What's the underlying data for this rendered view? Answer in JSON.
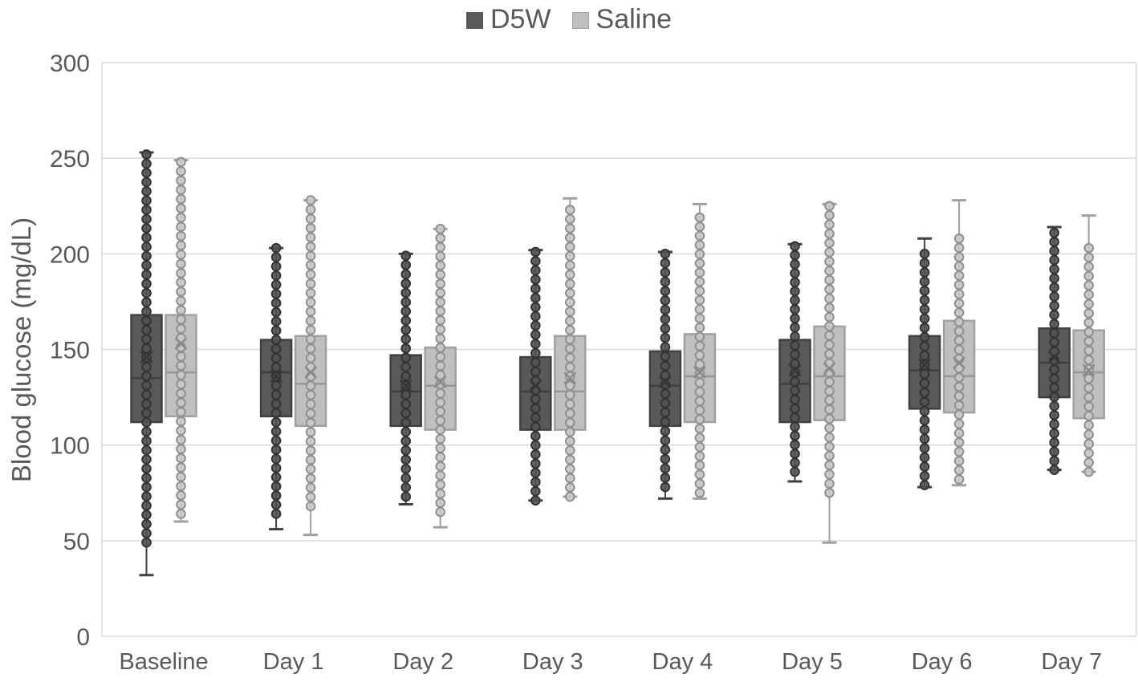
{
  "figure": {
    "background": "#ffffff",
    "text_color": "#595959",
    "gridline_color": "#d9d9d9"
  },
  "chart_data": {
    "type": "boxplot",
    "title": "",
    "xlabel": "",
    "ylabel": "Blood glucose (mg/dL)",
    "ylim": [
      0,
      300
    ],
    "yticks": [
      0,
      50,
      100,
      150,
      200,
      250,
      300
    ],
    "ytick_labels": [
      "0",
      "50",
      "100",
      "150",
      "200",
      "250",
      "300"
    ],
    "categories": [
      "Baseline",
      "Day 1",
      "Day 2",
      "Day 3",
      "Day 4",
      "Day 5",
      "Day 6",
      "Day 7"
    ],
    "legend": [
      "D5W",
      "Saline"
    ],
    "legend_position": "top-center",
    "grid": true,
    "dot_value_step": 4.8,
    "series": [
      {
        "name": "D5W",
        "box_fill": "#595959",
        "box_stroke": "#404040",
        "median_color": "#404040",
        "whisker_color": "#404040",
        "mean_color": "#363636",
        "dot_fill": "#515151",
        "dot_stroke": "#333333",
        "boxes": [
          {
            "category": "Baseline",
            "whisker_low": 32,
            "q1": 112,
            "median": 135,
            "mean": 146,
            "q3": 168,
            "whisker_high": 253,
            "dots_min": 49,
            "dots_max": 252
          },
          {
            "category": "Day 1",
            "whisker_low": 56,
            "q1": 115,
            "median": 138,
            "mean": 136,
            "q3": 155,
            "whisker_high": 203,
            "dots_min": 64,
            "dots_max": 203
          },
          {
            "category": "Day 2",
            "whisker_low": 69,
            "q1": 110,
            "median": 128,
            "mean": 131,
            "q3": 147,
            "whisker_high": 200,
            "dots_min": 73,
            "dots_max": 199
          },
          {
            "category": "Day 3",
            "whisker_low": 71,
            "q1": 108,
            "median": 128,
            "mean": 131,
            "q3": 146,
            "whisker_high": 202,
            "dots_min": 71,
            "dots_max": 201
          },
          {
            "category": "Day 4",
            "whisker_low": 72,
            "q1": 110,
            "median": 131,
            "mean": 133,
            "q3": 149,
            "whisker_high": 201,
            "dots_min": 78,
            "dots_max": 200
          },
          {
            "category": "Day 5",
            "whisker_low": 81,
            "q1": 112,
            "median": 132,
            "mean": 139,
            "q3": 155,
            "whisker_high": 205,
            "dots_min": 86,
            "dots_max": 204
          },
          {
            "category": "Day 6",
            "whisker_low": 78,
            "q1": 119,
            "median": 139,
            "mean": 142,
            "q3": 157,
            "whisker_high": 208,
            "dots_min": 79,
            "dots_max": 200
          },
          {
            "category": "Day 7",
            "whisker_low": 87,
            "q1": 125,
            "median": 143,
            "mean": 146,
            "q3": 161,
            "whisker_high": 214,
            "dots_min": 87,
            "dots_max": 211
          }
        ]
      },
      {
        "name": "Saline",
        "box_fill": "#bfbfbf",
        "box_stroke": "#a0a0a0",
        "median_color": "#969696",
        "whisker_color": "#a0a0a0",
        "mean_color": "#8a8a8a",
        "dot_fill": "#c8c8c8",
        "dot_stroke": "#8f8f8f",
        "boxes": [
          {
            "category": "Baseline",
            "whisker_low": 60,
            "q1": 115,
            "median": 138,
            "mean": 153,
            "q3": 168,
            "whisker_high": 249,
            "dots_min": 64,
            "dots_max": 248
          },
          {
            "category": "Day 1",
            "whisker_low": 53,
            "q1": 110,
            "median": 132,
            "mean": 138,
            "q3": 157,
            "whisker_high": 228,
            "dots_min": 68,
            "dots_max": 228
          },
          {
            "category": "Day 2",
            "whisker_low": 57,
            "q1": 108,
            "median": 131,
            "mean": 133,
            "q3": 151,
            "whisker_high": 213,
            "dots_min": 65,
            "dots_max": 213
          },
          {
            "category": "Day 3",
            "whisker_low": 73,
            "q1": 108,
            "median": 128,
            "mean": 135,
            "q3": 157,
            "whisker_high": 229,
            "dots_min": 73,
            "dots_max": 223
          },
          {
            "category": "Day 4",
            "whisker_low": 72,
            "q1": 112,
            "median": 136,
            "mean": 138,
            "q3": 158,
            "whisker_high": 226,
            "dots_min": 75,
            "dots_max": 219
          },
          {
            "category": "Day 5",
            "whisker_low": 49,
            "q1": 113,
            "median": 136,
            "mean": 140,
            "q3": 162,
            "whisker_high": 226,
            "dots_min": 75,
            "dots_max": 225
          },
          {
            "category": "Day 6",
            "whisker_low": 79,
            "q1": 117,
            "median": 136,
            "mean": 143,
            "q3": 165,
            "whisker_high": 228,
            "dots_min": 82,
            "dots_max": 208
          },
          {
            "category": "Day 7",
            "whisker_low": 86,
            "q1": 114,
            "median": 138,
            "mean": 139,
            "q3": 160,
            "whisker_high": 220,
            "dots_min": 86,
            "dots_max": 203
          }
        ]
      }
    ]
  }
}
